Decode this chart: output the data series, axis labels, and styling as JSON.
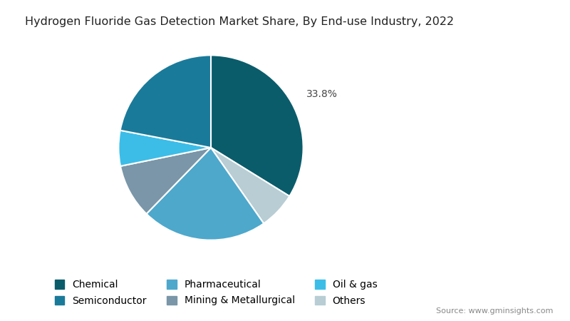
{
  "title": "Hydrogen Fluoride Gas Detection Market Share, By End-use Industry, 2022",
  "segments": [
    {
      "label": "Chemical",
      "value": 33.8,
      "color": "#0a5c6b"
    },
    {
      "label": "Others",
      "value": 6.5,
      "color": "#b8cdd4"
    },
    {
      "label": "Pharmaceutical",
      "value": 22.0,
      "color": "#4da8cc"
    },
    {
      "label": "Mining & Metallurgical",
      "value": 9.5,
      "color": "#7a96a8"
    },
    {
      "label": "Oil & gas",
      "value": 6.2,
      "color": "#3bbde8"
    },
    {
      "label": "Semiconductor",
      "value": 22.0,
      "color": "#1a7a9a"
    }
  ],
  "label_text": "33.8%",
  "startangle": 90,
  "title_fontsize": 11.5,
  "legend_fontsize": 10,
  "source_text": "Source: www.gminsights.com",
  "background_color": "#ffffff",
  "legend_order": [
    "Chemical",
    "Semiconductor",
    "Pharmaceutical",
    "Mining & Metallurgical",
    "Oil & gas",
    "Others"
  ]
}
